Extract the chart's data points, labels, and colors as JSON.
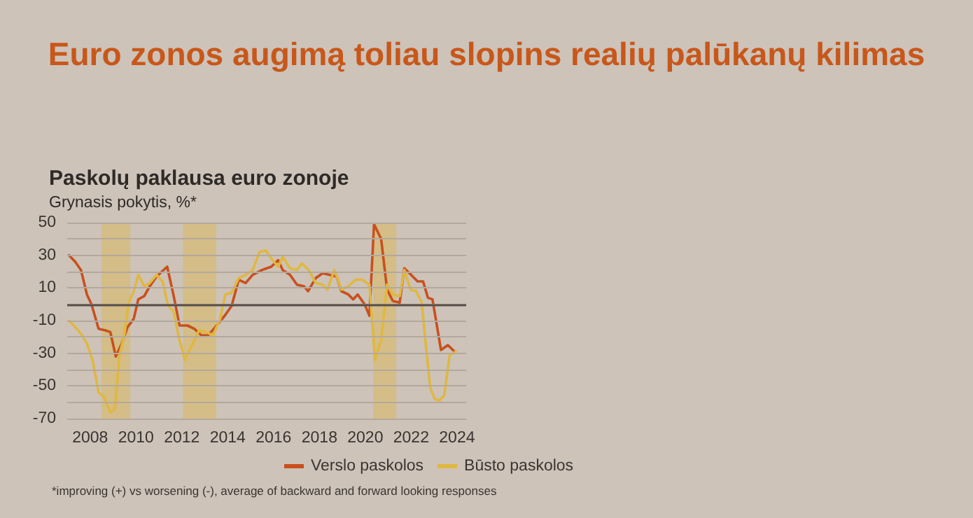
{
  "chart_data": {
    "type": "line",
    "title": "Euro zonos augimą toliau slopins realių palūkanų kilimas",
    "subtitle": "Paskolų paklausa euro zonoje",
    "ylabel": "Grynasis pokytis, %*",
    "annotations": [
      "*improving (+) vs worsening (-), average of backward and forward looking responses"
    ],
    "xlim": [
      2007,
      2024.4
    ],
    "xticks": [
      2008,
      2010,
      2012,
      2014,
      2016,
      2018,
      2020,
      2022,
      2024
    ],
    "ylim": [
      -70,
      50
    ],
    "yticks": [
      -70,
      {
        "value": -60,
        "label": null
      },
      -50,
      {
        "value": -40,
        "label": null
      },
      -30,
      {
        "value": -20,
        "label": null
      },
      -10,
      {
        "value": 0,
        "label": null
      },
      10,
      {
        "value": 20,
        "label": null
      },
      30,
      {
        "value": 40,
        "label": null
      },
      50
    ],
    "grid": "y",
    "legend": "bottom",
    "marker": "none",
    "line_style": "solid",
    "ref_lines": [
      {
        "axis": "y",
        "value": 0,
        "color": "#5a4f48"
      }
    ],
    "bands": [
      {
        "axis": "x",
        "from": 2008.5,
        "to": 2009.75,
        "color": "#d4bd86"
      },
      {
        "axis": "x",
        "from": 2012.05,
        "to": 2013.5,
        "color": "#d4bd86"
      },
      {
        "axis": "x",
        "from": 2020.35,
        "to": 2021.35,
        "color": "#d4bd86"
      }
    ],
    "series": [
      {
        "name": "Verslo paskolos",
        "color": "#c8501e",
        "x": [
          2007.08,
          2007.35,
          2007.6,
          2007.86,
          2008.06,
          2008.37,
          2008.67,
          2008.88,
          2009.12,
          2009.38,
          2009.63,
          2009.9,
          2010.1,
          2010.36,
          2010.6,
          2010.9,
          2011.36,
          2011.63,
          2011.9,
          2012.24,
          2012.54,
          2012.85,
          2013.15,
          2013.46,
          2013.87,
          2014.17,
          2014.48,
          2014.78,
          2015.09,
          2015.5,
          2015.9,
          2016.2,
          2016.4,
          2016.72,
          2017.02,
          2017.33,
          2017.5,
          2017.84,
          2018.14,
          2018.45,
          2018.75,
          2018.96,
          2019.26,
          2019.47,
          2019.67,
          2019.97,
          2020.18,
          2020.38,
          2020.69,
          2020.95,
          2021.2,
          2021.5,
          2021.7,
          2022.0,
          2022.28,
          2022.52,
          2022.73,
          2022.93,
          2023.3,
          2023.6,
          2023.89
        ],
        "values": [
          30,
          26,
          21,
          6,
          0,
          -15,
          -16,
          -17,
          -32,
          -24,
          -14,
          -9,
          3,
          5,
          11,
          17,
          23,
          6,
          -13,
          -13,
          -15,
          -19,
          -19,
          -14,
          -7,
          -1,
          15,
          13,
          18,
          21,
          23,
          27,
          21,
          18,
          12,
          11,
          8,
          16,
          19,
          18,
          17,
          8,
          6,
          3,
          6,
          0,
          -7,
          49,
          40,
          9,
          2,
          1,
          22,
          18,
          14,
          14,
          4,
          3,
          -28,
          -25,
          -29
        ]
      },
      {
        "name": "Būsto paskolos",
        "color": "#e0b840",
        "x": [
          2007.08,
          2007.35,
          2007.6,
          2007.86,
          2008.12,
          2008.37,
          2008.61,
          2008.88,
          2009.08,
          2009.28,
          2009.49,
          2009.69,
          2009.9,
          2010.1,
          2010.36,
          2010.6,
          2010.9,
          2011.16,
          2011.4,
          2011.63,
          2011.9,
          2012.13,
          2012.44,
          2012.75,
          2013.05,
          2013.36,
          2013.67,
          2013.9,
          2014.17,
          2014.48,
          2014.78,
          2015.09,
          2015.39,
          2015.66,
          2015.9,
          2016.2,
          2016.4,
          2016.72,
          2017.02,
          2017.23,
          2017.53,
          2017.84,
          2018.14,
          2018.35,
          2018.65,
          2018.96,
          2019.26,
          2019.57,
          2019.87,
          2020.18,
          2020.42,
          2020.69,
          2020.95,
          2021.2,
          2021.5,
          2021.7,
          2021.97,
          2022.22,
          2022.46,
          2022.66,
          2022.83,
          2023.03,
          2023.23,
          2023.44,
          2023.68,
          2023.95
        ],
        "values": [
          -10,
          -14,
          -18,
          -24,
          -35,
          -54,
          -57,
          -66,
          -64,
          -31,
          -19,
          1,
          8,
          18,
          11,
          13,
          18,
          14,
          -1,
          -4,
          -22,
          -34,
          -25,
          -16,
          -17,
          -19,
          -9,
          6,
          7,
          16,
          18,
          21,
          32,
          33,
          28,
          23,
          29,
          22,
          21,
          25,
          21,
          13,
          12,
          9,
          21,
          9,
          11,
          15,
          15,
          12,
          -34,
          -22,
          12,
          6,
          5,
          21,
          9,
          8,
          1,
          -28,
          -51,
          -58,
          -59,
          -56,
          -31,
          -29
        ]
      }
    ]
  }
}
